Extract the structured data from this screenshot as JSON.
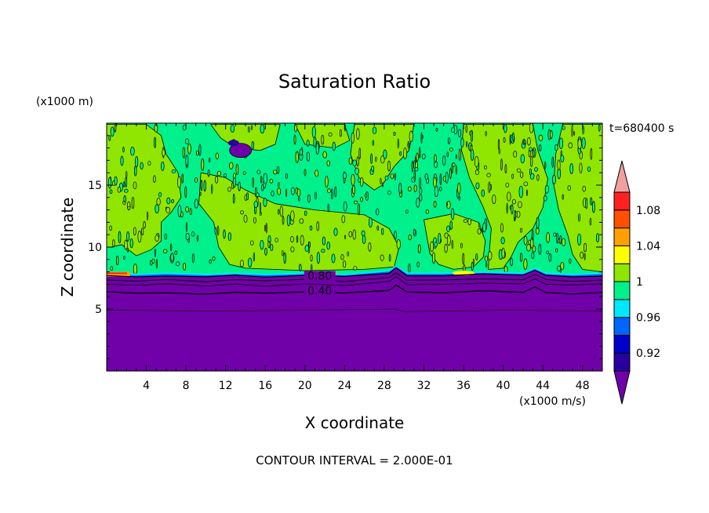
{
  "chart_data": {
    "type": "contour",
    "title": "Saturation Ratio",
    "xlabel": "X coordinate",
    "ylabel": "Z coordinate",
    "x_unit": "(x1000 m/s)",
    "y_unit": "(x1000 m)",
    "time_label": "t=680400 s",
    "footer": "CONTOUR INTERVAL = 2.000E-01",
    "xlim": [
      0,
      50
    ],
    "ylim": [
      0,
      20
    ],
    "x_ticks": [
      4,
      8,
      12,
      16,
      20,
      24,
      28,
      32,
      36,
      40,
      44,
      48
    ],
    "y_ticks": [
      5,
      10,
      15
    ],
    "contour_labels": [
      "0.80",
      "0.40"
    ],
    "colorbar": {
      "boundaries": [
        0.9,
        0.92,
        0.94,
        0.96,
        0.98,
        1.0,
        1.02,
        1.04,
        1.06,
        1.08,
        1.1
      ],
      "tick_labels": [
        "0.92",
        "0.96",
        "1",
        "1.04",
        "1.08"
      ],
      "colors": [
        "#7000a8",
        "#2800a0",
        "#0000c8",
        "#0064ff",
        "#00e8ff",
        "#00f08c",
        "#90e600",
        "#ffff00",
        "#ffa000",
        "#ff5000",
        "#ff2020",
        "#f0a0a0"
      ]
    }
  }
}
